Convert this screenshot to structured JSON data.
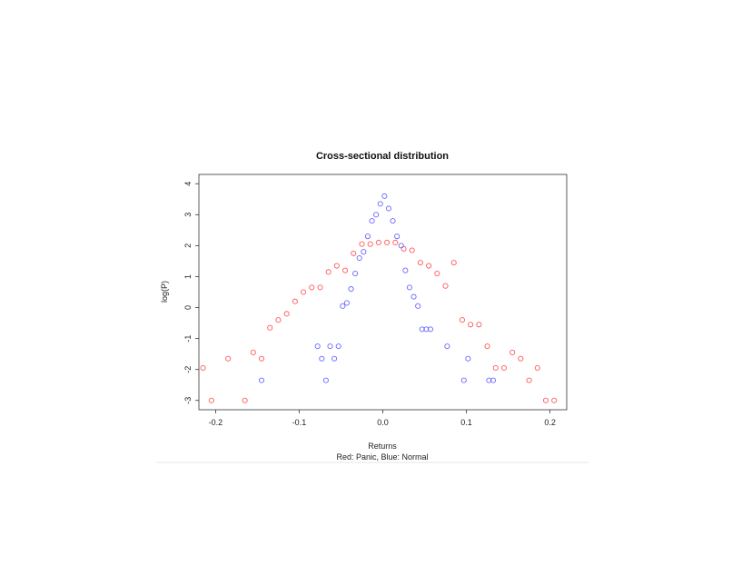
{
  "chart_data": {
    "type": "scatter",
    "title": "Cross-sectional distribution",
    "xlabel": "Returns",
    "subtitle": "Red: Panic, Blue: Normal",
    "ylabel": "log(P)",
    "xlim": [
      -0.22,
      0.22
    ],
    "ylim": [
      -3.3,
      4.3
    ],
    "x_ticks": [
      -0.2,
      -0.1,
      0.0,
      0.1,
      0.2
    ],
    "x_tick_labels": [
      "-0.2",
      "-0.1",
      "0.0",
      "0.1",
      "0.2"
    ],
    "y_ticks": [
      -3,
      -2,
      -1,
      0,
      1,
      2,
      3,
      4
    ],
    "y_tick_labels": [
      "-3",
      "-2",
      "-1",
      "0",
      "1",
      "2",
      "3",
      "4"
    ],
    "grid": false,
    "legend": "none",
    "series": [
      {
        "name": "Panic",
        "color": "#ff5a5a",
        "marker": "open-circle",
        "points": [
          [
            -0.215,
            -1.95
          ],
          [
            -0.205,
            -3.0
          ],
          [
            -0.185,
            -1.65
          ],
          [
            -0.165,
            -3.0
          ],
          [
            -0.155,
            -1.45
          ],
          [
            -0.145,
            -1.65
          ],
          [
            -0.135,
            -0.65
          ],
          [
            -0.125,
            -0.4
          ],
          [
            -0.115,
            -0.2
          ],
          [
            -0.105,
            0.2
          ],
          [
            -0.095,
            0.5
          ],
          [
            -0.085,
            0.65
          ],
          [
            -0.075,
            0.65
          ],
          [
            -0.065,
            1.15
          ],
          [
            -0.055,
            1.35
          ],
          [
            -0.045,
            1.2
          ],
          [
            -0.035,
            1.75
          ],
          [
            -0.025,
            2.05
          ],
          [
            -0.015,
            2.05
          ],
          [
            -0.005,
            2.1
          ],
          [
            0.005,
            2.1
          ],
          [
            0.015,
            2.1
          ],
          [
            0.025,
            1.9
          ],
          [
            0.035,
            1.85
          ],
          [
            0.045,
            1.45
          ],
          [
            0.055,
            1.35
          ],
          [
            0.065,
            1.1
          ],
          [
            0.075,
            0.7
          ],
          [
            0.085,
            1.45
          ],
          [
            0.095,
            -0.4
          ],
          [
            0.105,
            -0.55
          ],
          [
            0.115,
            -0.55
          ],
          [
            0.125,
            -1.25
          ],
          [
            0.135,
            -1.95
          ],
          [
            0.145,
            -1.95
          ],
          [
            0.155,
            -1.45
          ],
          [
            0.165,
            -1.65
          ],
          [
            0.175,
            -2.35
          ],
          [
            0.185,
            -1.95
          ],
          [
            0.195,
            -3.0
          ],
          [
            0.205,
            -3.0
          ]
        ]
      },
      {
        "name": "Normal",
        "color": "#6a6aff",
        "marker": "open-circle",
        "points": [
          [
            -0.145,
            -2.35
          ],
          [
            -0.078,
            -1.25
          ],
          [
            -0.073,
            -1.65
          ],
          [
            -0.068,
            -2.35
          ],
          [
            -0.063,
            -1.25
          ],
          [
            -0.058,
            -1.65
          ],
          [
            -0.053,
            -1.25
          ],
          [
            -0.048,
            0.05
          ],
          [
            -0.043,
            0.15
          ],
          [
            -0.038,
            0.6
          ],
          [
            -0.033,
            1.1
          ],
          [
            -0.028,
            1.6
          ],
          [
            -0.023,
            1.8
          ],
          [
            -0.018,
            2.3
          ],
          [
            -0.013,
            2.8
          ],
          [
            -0.008,
            3.0
          ],
          [
            -0.003,
            3.35
          ],
          [
            0.002,
            3.6
          ],
          [
            0.007,
            3.2
          ],
          [
            0.012,
            2.8
          ],
          [
            0.017,
            2.3
          ],
          [
            0.022,
            2.0
          ],
          [
            0.027,
            1.2
          ],
          [
            0.032,
            0.65
          ],
          [
            0.037,
            0.35
          ],
          [
            0.042,
            0.05
          ],
          [
            0.047,
            -0.7
          ],
          [
            0.052,
            -0.7
          ],
          [
            0.057,
            -0.7
          ],
          [
            0.077,
            -1.25
          ],
          [
            0.097,
            -2.35
          ],
          [
            0.102,
            -1.65
          ],
          [
            0.127,
            -2.35
          ],
          [
            0.132,
            -2.35
          ]
        ]
      }
    ]
  }
}
